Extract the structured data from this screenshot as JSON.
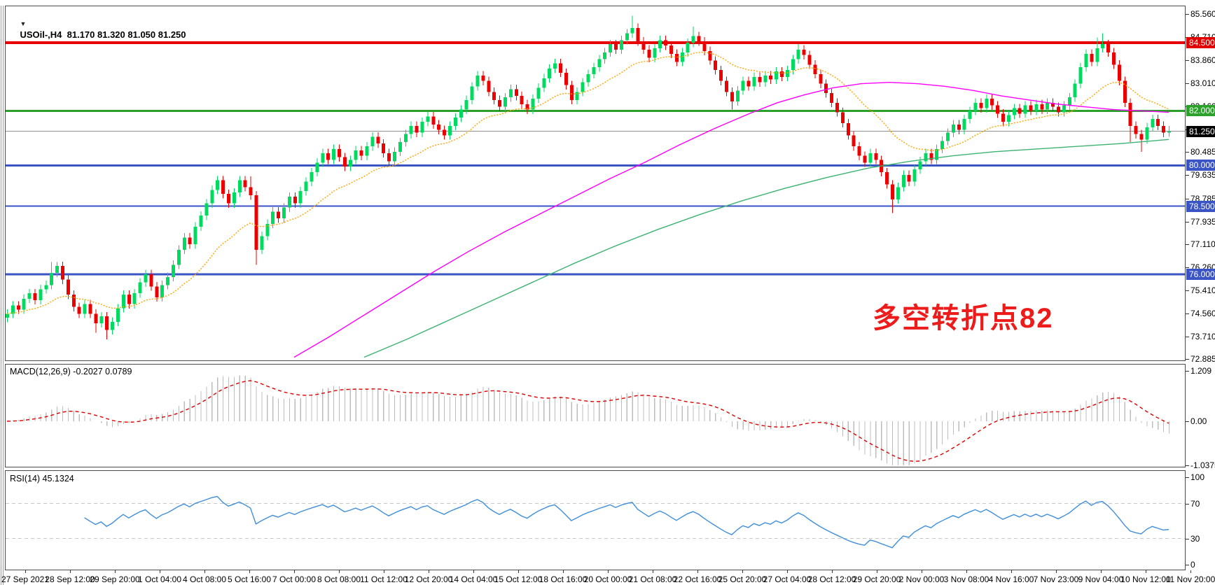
{
  "title": {
    "text": "USOil-,H4  81.170 81.320 81.050 81.250",
    "collapse_icon": "▼"
  },
  "annotation": {
    "text": "多空转折点82",
    "color": "#ee1b1b"
  },
  "colors": {
    "candle_up": "#00da5f",
    "candle_down": "#ec0000",
    "macd_hist": "#bcbcbc",
    "macd_signal": "#dd0000",
    "rsi_line": "#3f8edc",
    "level_dash": "#c8c8c8",
    "current_price_line": "#909090"
  },
  "chart_data": {
    "type": "candlestick",
    "symbol": "USOil-",
    "timeframe": "H4",
    "ohlc_display": {
      "open": "81.170",
      "high": "81.320",
      "low": "81.050",
      "close": "81.250"
    },
    "ylim": [
      72.885,
      85.56
    ],
    "price_ticks": [
      "85.560",
      "84.710",
      "83.860",
      "83.010",
      "82.160",
      "81.310",
      "80.485",
      "79.635",
      "78.785",
      "77.935",
      "77.110",
      "76.260",
      "75.410",
      "74.560",
      "73.710",
      "72.885"
    ],
    "price_tick_values": [
      85.56,
      84.71,
      83.86,
      83.01,
      82.16,
      81.31,
      80.485,
      79.635,
      78.785,
      77.935,
      77.11,
      76.26,
      75.41,
      74.56,
      73.71,
      72.885
    ],
    "x_labels": [
      "27 Sep 2021",
      "28 Sep 12:00",
      "29 Sep 20:00",
      "1 Oct 04:00",
      "4 Oct 08:00",
      "5 Oct 16:00",
      "7 Oct 00:00",
      "8 Oct 08:00",
      "11 Oct 12:00",
      "12 Oct 20:00",
      "14 Oct 04:00",
      "15 Oct 12:00",
      "18 Oct 16:00",
      "20 Oct 00:00",
      "21 Oct 08:00",
      "22 Oct 16:00",
      "25 Oct 20:00",
      "27 Oct 04:00",
      "28 Oct 12:00",
      "29 Oct 20:00",
      "2 Nov 00:00",
      "3 Nov 08:00",
      "4 Nov 16:00",
      "7 Nov 23:00",
      "9 Nov 04:00",
      "10 Nov 12:00",
      "11 Nov 20:00"
    ],
    "first_open": 74.4,
    "closes": [
      74.55,
      74.85,
      74.7,
      75.1,
      75.3,
      75.05,
      75.45,
      75.6,
      76.05,
      76.3,
      75.8,
      75.25,
      74.8,
      74.55,
      74.9,
      74.55,
      74.2,
      74.45,
      73.95,
      74.25,
      74.75,
      75.25,
      74.9,
      75.3,
      75.7,
      76.0,
      75.55,
      75.15,
      75.6,
      75.9,
      76.35,
      76.9,
      77.35,
      77.1,
      77.75,
      78.15,
      78.6,
      79.1,
      79.45,
      78.95,
      78.6,
      79.0,
      79.45,
      79.2,
      78.9,
      76.9,
      77.4,
      77.85,
      78.3,
      78.05,
      78.45,
      78.85,
      78.6,
      79.05,
      79.4,
      79.75,
      80.1,
      80.45,
      80.2,
      80.6,
      80.3,
      79.95,
      80.2,
      80.55,
      80.35,
      80.7,
      81.05,
      80.8,
      80.45,
      80.15,
      80.5,
      80.85,
      81.15,
      81.45,
      81.2,
      81.6,
      81.8,
      81.5,
      81.3,
      81.1,
      81.45,
      81.75,
      82.05,
      82.4,
      82.9,
      83.3,
      83.1,
      82.7,
      82.4,
      82.15,
      82.5,
      82.8,
      82.55,
      82.25,
      82.05,
      82.45,
      82.85,
      83.2,
      83.55,
      83.75,
      83.4,
      82.95,
      82.4,
      82.7,
      83.05,
      83.35,
      83.6,
      83.9,
      84.15,
      84.45,
      84.25,
      84.6,
      84.85,
      85.05,
      84.55,
      84.25,
      83.95,
      84.3,
      84.6,
      84.4,
      84.1,
      83.8,
      84.15,
      84.5,
      84.75,
      84.55,
      84.2,
      83.85,
      83.5,
      83.1,
      82.7,
      82.35,
      82.75,
      83.1,
      82.9,
      83.25,
      83.05,
      83.3,
      83.15,
      83.45,
      83.25,
      83.5,
      83.9,
      84.25,
      84.05,
      83.7,
      83.35,
      83.0,
      82.65,
      82.3,
      81.95,
      81.55,
      81.1,
      80.7,
      80.35,
      80.1,
      80.45,
      80.2,
      79.75,
      79.3,
      78.75,
      79.2,
      79.65,
      79.4,
      79.85,
      80.15,
      80.45,
      80.2,
      80.6,
      80.9,
      81.2,
      81.5,
      81.3,
      81.7,
      82.0,
      82.3,
      82.1,
      82.45,
      82.2,
      81.9,
      81.6,
      81.85,
      82.1,
      81.9,
      82.2,
      82.0,
      82.25,
      82.05,
      82.3,
      82.15,
      81.95,
      82.2,
      82.5,
      83.0,
      83.6,
      84.1,
      83.8,
      84.3,
      84.45,
      84.15,
      83.7,
      83.1,
      82.3,
      81.45,
      81.15,
      80.95,
      81.4,
      81.7,
      81.45,
      81.2,
      81.25
    ],
    "default_wick": 0.16,
    "wick_overrides": {
      "8": {
        "high": 76.45
      },
      "9": {
        "high": 76.45
      },
      "16": {
        "low": 73.85
      },
      "18": {
        "low": 73.6
      },
      "44": {
        "high": 79.6
      },
      "45": {
        "low": 76.35
      },
      "113": {
        "high": 85.5
      },
      "124": {
        "high": 85.1
      },
      "131": {
        "low": 82.05
      },
      "143": {
        "high": 84.45
      },
      "160": {
        "low": 78.25
      },
      "197": {
        "high": 84.7
      },
      "198": {
        "high": 84.85
      },
      "203": {
        "low": 80.85
      },
      "205": {
        "low": 80.5
      },
      "210": {
        "high": 81.45,
        "low": 81.05
      }
    },
    "moving_averages": {
      "fast": {
        "name": "fast-ma",
        "color": "#ffa500",
        "method": "ema",
        "period": 20
      },
      "mid": {
        "name": "mid-ma",
        "color": "#ff00ff",
        "points": [
          [
            420,
            72.95
          ],
          [
            470,
            73.7
          ],
          [
            520,
            74.5
          ],
          [
            570,
            75.3
          ],
          [
            620,
            76.1
          ],
          [
            670,
            76.85
          ],
          [
            720,
            77.55
          ],
          [
            770,
            78.2
          ],
          [
            820,
            78.85
          ],
          [
            870,
            79.5
          ],
          [
            920,
            80.1
          ],
          [
            970,
            80.75
          ],
          [
            1020,
            81.35
          ],
          [
            1070,
            81.9
          ],
          [
            1110,
            82.3
          ],
          [
            1150,
            82.6
          ],
          [
            1190,
            82.85
          ],
          [
            1230,
            83.0
          ],
          [
            1270,
            83.05
          ],
          [
            1310,
            83.0
          ],
          [
            1350,
            82.9
          ],
          [
            1390,
            82.75
          ],
          [
            1430,
            82.55
          ],
          [
            1470,
            82.4
          ],
          [
            1510,
            82.25
          ],
          [
            1550,
            82.15
          ],
          [
            1590,
            82.05
          ],
          [
            1630,
            82.0
          ],
          [
            1669,
            81.95
          ]
        ]
      },
      "slow": {
        "name": "slow-ma",
        "color": "#3cb371",
        "points": [
          [
            520,
            72.95
          ],
          [
            580,
            73.6
          ],
          [
            640,
            74.3
          ],
          [
            700,
            75.0
          ],
          [
            760,
            75.7
          ],
          [
            820,
            76.4
          ],
          [
            880,
            77.05
          ],
          [
            940,
            77.65
          ],
          [
            1000,
            78.2
          ],
          [
            1060,
            78.7
          ],
          [
            1120,
            79.15
          ],
          [
            1180,
            79.55
          ],
          [
            1240,
            79.9
          ],
          [
            1300,
            80.15
          ],
          [
            1360,
            80.35
          ],
          [
            1420,
            80.5
          ],
          [
            1480,
            80.6
          ],
          [
            1540,
            80.7
          ],
          [
            1600,
            80.8
          ],
          [
            1669,
            80.95
          ]
        ]
      }
    },
    "hlines": [
      {
        "price": 84.5,
        "color": "#e60000",
        "width": 4,
        "label": "84.500",
        "badge_bg": "#e00000"
      },
      {
        "price": 82.0,
        "color": "#2ba12b",
        "width": 3,
        "label": "82.000",
        "badge_bg": "#2ba12b"
      },
      {
        "price": 80.0,
        "color": "#3a53c5",
        "width": 3,
        "label": "80.000",
        "badge_bg": "#3a53c5"
      },
      {
        "price": 78.5,
        "color": "#3a53c5",
        "width": 2,
        "label": "78.500",
        "badge_bg": "#3a53c5"
      },
      {
        "price": 76.0,
        "color": "#3a53c5",
        "width": 3,
        "label": "76.000",
        "badge_bg": "#3a53c5"
      }
    ],
    "current_price": {
      "value": 81.25,
      "label": "81.250",
      "badge_bg": "#000000"
    },
    "indicators": {
      "macd": {
        "label": "MACD(12,26,9) -0.2027 0.0789",
        "params": [
          12,
          26,
          9
        ],
        "main_value": -0.2027,
        "signal_value": 0.0789,
        "axis_ticks": [
          "1.209",
          "0.00",
          "-1.0375"
        ],
        "axis_values": [
          1.209,
          0,
          -1.0375
        ]
      },
      "rsi": {
        "label": "RSI(14) 45.1324",
        "period": 14,
        "value": 45.1324,
        "axis_ticks": [
          "100",
          "70",
          "30",
          "0"
        ],
        "axis_values": [
          100,
          70,
          30,
          0
        ],
        "levels": [
          70,
          30
        ]
      }
    }
  }
}
